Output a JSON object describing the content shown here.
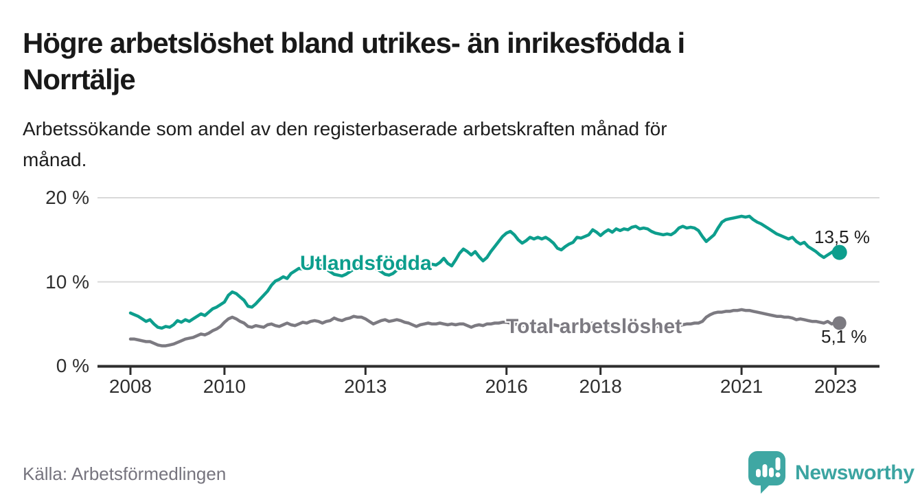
{
  "header": {
    "title_lines": [
      "Högre arbetslöshet bland utrikes- än inrikesfödda i",
      "Norrtälje"
    ],
    "subtitle_lines": [
      "Arbetssökande som andel av den registerbaserade arbetskraften månad för",
      "månad."
    ]
  },
  "footer": {
    "source": "Källa: Arbetsförmedlingen"
  },
  "brand": {
    "name": "Newsworthy",
    "icon": "newsworthy-speech-bubble-bar-chart-icon",
    "color": "#3ba4a1"
  },
  "chart_data": {
    "type": "line",
    "unit": "percent",
    "frequency": "monthly",
    "x_start": "2008-01",
    "x_end": "2023-02",
    "ylim": [
      0,
      20
    ],
    "grid": "horizontal",
    "legend_position": "inline-labels",
    "y_ticks": [
      {
        "value": 20,
        "label": "20 %"
      },
      {
        "value": 10,
        "label": "10 %"
      },
      {
        "value": 0,
        "label": "0 %"
      }
    ],
    "x_ticks": [
      {
        "year": 2008,
        "label": "2008"
      },
      {
        "year": 2010,
        "label": "2010"
      },
      {
        "year": 2013,
        "label": "2013"
      },
      {
        "year": 2016,
        "label": "2016"
      },
      {
        "year": 2018,
        "label": "2018"
      },
      {
        "year": 2021,
        "label": "2021"
      },
      {
        "year": 2023,
        "label": "2023"
      }
    ],
    "series": [
      {
        "name": "Utlandsfödda",
        "color": "#0d9e8d",
        "end_label": "13,5 %",
        "end_value": 13.5,
        "values": [
          6.3,
          6.1,
          5.9,
          5.6,
          5.3,
          5.5,
          5.0,
          4.6,
          4.5,
          4.7,
          4.6,
          4.9,
          5.4,
          5.2,
          5.5,
          5.3,
          5.6,
          5.9,
          6.2,
          6.0,
          6.4,
          6.8,
          7.0,
          7.3,
          7.6,
          8.4,
          8.8,
          8.6,
          8.2,
          7.8,
          7.1,
          7.0,
          7.4,
          7.9,
          8.4,
          8.9,
          9.6,
          10.1,
          10.3,
          10.6,
          10.4,
          11.0,
          11.3,
          11.6,
          11.5,
          11.8,
          12.0,
          12.2,
          12.1,
          11.8,
          11.5,
          11.2,
          10.9,
          10.8,
          10.7,
          10.9,
          11.2,
          11.5,
          11.8,
          12.1,
          12.3,
          12.1,
          11.8,
          11.5,
          11.2,
          10.9,
          10.8,
          11.0,
          11.4,
          11.8,
          12.1,
          12.4,
          12.6,
          12.7,
          12.5,
          12.3,
          12.2,
          12.1,
          12.0,
          12.3,
          12.8,
          12.2,
          11.9,
          12.6,
          13.4,
          13.9,
          13.6,
          13.2,
          13.6,
          13.0,
          12.5,
          12.9,
          13.6,
          14.2,
          14.8,
          15.4,
          15.8,
          16.0,
          15.6,
          15.0,
          14.6,
          14.9,
          15.3,
          15.1,
          15.3,
          15.1,
          15.3,
          15.0,
          14.6,
          14.0,
          13.8,
          14.2,
          14.5,
          14.7,
          15.3,
          15.2,
          15.4,
          15.6,
          16.2,
          15.9,
          15.5,
          15.9,
          16.2,
          15.9,
          16.3,
          16.1,
          16.3,
          16.2,
          16.5,
          16.6,
          16.3,
          16.4,
          16.3,
          16.0,
          15.8,
          15.7,
          15.6,
          15.7,
          15.6,
          15.9,
          16.4,
          16.6,
          16.4,
          16.5,
          16.4,
          16.1,
          15.4,
          14.8,
          15.2,
          15.6,
          16.4,
          17.1,
          17.4,
          17.5,
          17.6,
          17.7,
          17.8,
          17.7,
          17.8,
          17.4,
          17.1,
          16.9,
          16.6,
          16.3,
          16.0,
          15.7,
          15.5,
          15.3,
          15.1,
          15.3,
          14.8,
          14.5,
          14.7,
          14.2,
          13.9,
          13.6,
          13.2,
          12.9,
          13.2,
          13.5,
          13.8,
          13.5
        ]
      },
      {
        "name": "Total arbetslöshet",
        "color": "#7c7a81",
        "end_label": "5,1 %",
        "end_value": 5.1,
        "values": [
          3.2,
          3.2,
          3.1,
          3.0,
          2.9,
          2.9,
          2.7,
          2.5,
          2.4,
          2.4,
          2.5,
          2.6,
          2.8,
          3.0,
          3.2,
          3.3,
          3.4,
          3.6,
          3.8,
          3.7,
          3.9,
          4.2,
          4.4,
          4.7,
          5.2,
          5.6,
          5.8,
          5.6,
          5.3,
          5.1,
          4.7,
          4.6,
          4.8,
          4.7,
          4.6,
          4.9,
          5.0,
          4.8,
          4.7,
          4.9,
          5.1,
          4.9,
          4.8,
          5.0,
          5.2,
          5.1,
          5.3,
          5.4,
          5.3,
          5.1,
          5.3,
          5.4,
          5.7,
          5.5,
          5.4,
          5.6,
          5.7,
          5.9,
          5.8,
          5.8,
          5.6,
          5.3,
          5.0,
          5.2,
          5.4,
          5.5,
          5.3,
          5.4,
          5.5,
          5.4,
          5.2,
          5.1,
          4.9,
          4.7,
          4.9,
          5.0,
          5.1,
          5.0,
          5.0,
          5.1,
          5.0,
          4.9,
          5.0,
          4.9,
          5.0,
          5.0,
          4.8,
          4.6,
          4.8,
          4.9,
          4.8,
          5.0,
          5.0,
          5.1,
          5.1,
          5.2,
          5.2,
          5.1,
          5.0,
          4.9,
          4.8,
          4.9,
          5.0,
          4.9,
          5.0,
          4.9,
          4.9,
          5.0,
          4.9,
          4.8,
          4.7,
          4.8,
          4.8,
          4.9,
          5.0,
          4.9,
          5.0,
          5.0,
          5.1,
          5.0,
          5.0,
          4.9,
          4.9,
          4.8,
          4.9,
          4.8,
          4.9,
          4.8,
          4.9,
          4.9,
          4.8,
          4.9,
          4.9,
          4.8,
          4.7,
          4.7,
          4.6,
          4.7,
          4.8,
          4.7,
          4.8,
          4.9,
          5.0,
          5.0,
          5.1,
          5.1,
          5.3,
          5.8,
          6.1,
          6.3,
          6.4,
          6.4,
          6.5,
          6.5,
          6.6,
          6.6,
          6.7,
          6.6,
          6.6,
          6.5,
          6.4,
          6.3,
          6.2,
          6.1,
          6.0,
          5.9,
          5.9,
          5.8,
          5.8,
          5.7,
          5.5,
          5.6,
          5.5,
          5.4,
          5.3,
          5.3,
          5.2,
          5.1,
          5.3,
          5.0,
          5.2,
          5.1
        ]
      }
    ]
  }
}
